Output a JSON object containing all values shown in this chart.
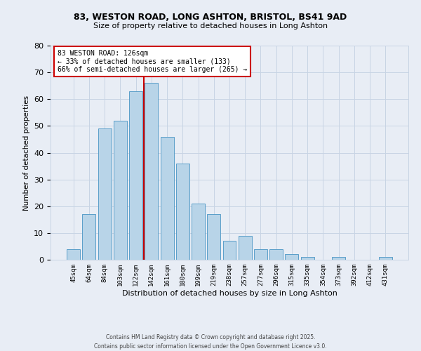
{
  "title_line1": "83, WESTON ROAD, LONG ASHTON, BRISTOL, BS41 9AD",
  "title_line2": "Size of property relative to detached houses in Long Ashton",
  "xlabel": "Distribution of detached houses by size in Long Ashton",
  "ylabel": "Number of detached properties",
  "categories": [
    "45sqm",
    "64sqm",
    "84sqm",
    "103sqm",
    "122sqm",
    "142sqm",
    "161sqm",
    "180sqm",
    "199sqm",
    "219sqm",
    "238sqm",
    "257sqm",
    "277sqm",
    "296sqm",
    "315sqm",
    "335sqm",
    "354sqm",
    "373sqm",
    "392sqm",
    "412sqm",
    "431sqm"
  ],
  "values": [
    4,
    17,
    49,
    52,
    63,
    66,
    46,
    36,
    21,
    17,
    7,
    9,
    4,
    4,
    2,
    1,
    0,
    1,
    0,
    0,
    1
  ],
  "bar_color": "#b8d4e8",
  "bar_edge_color": "#5a9ec9",
  "vline_color": "#cc0000",
  "annotation_title": "83 WESTON ROAD: 126sqm",
  "annotation_line2": "← 33% of detached houses are smaller (133)",
  "annotation_line3": "66% of semi-detached houses are larger (265) →",
  "annotation_box_color": "#ffffff",
  "annotation_box_edge_color": "#cc0000",
  "grid_color": "#c8d4e4",
  "background_color": "#e8edf5",
  "ylim": [
    0,
    80
  ],
  "yticks": [
    0,
    10,
    20,
    30,
    40,
    50,
    60,
    70,
    80
  ],
  "footer_line1": "Contains HM Land Registry data © Crown copyright and database right 2025.",
  "footer_line2": "Contains public sector information licensed under the Open Government Licence v3.0."
}
